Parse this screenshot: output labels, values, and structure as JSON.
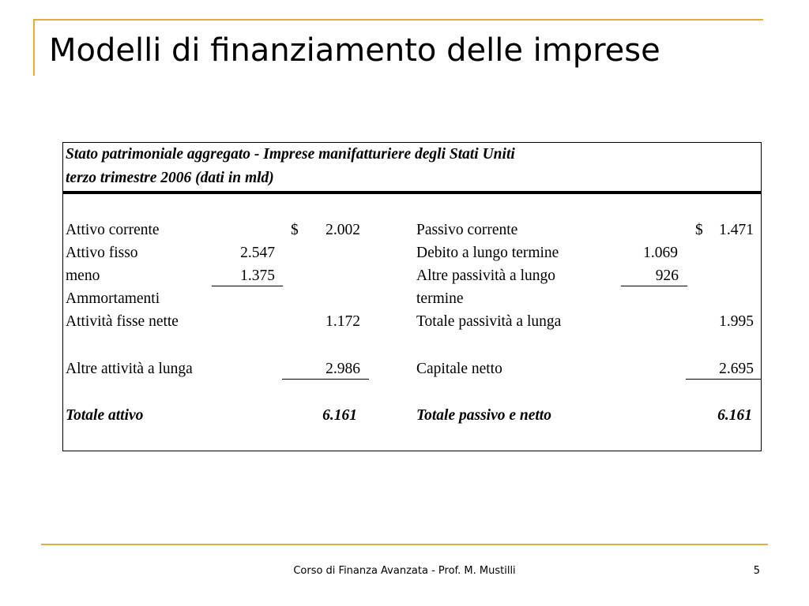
{
  "slide": {
    "title": "Modelli di finanziamento delle imprese",
    "footer": "Corso di Finanza Avanzata - Prof. M. Mustilli",
    "page_number": "5",
    "accent_color": "#e2b03a"
  },
  "table": {
    "header_line1": "Stato patrimoniale aggregato - Imprese manifatturiere degli Stati Uniti",
    "header_line2": "terzo trimestre 2006 (dati in mld)",
    "assets": {
      "current_label": "Attivo corrente",
      "current_currency": "$",
      "current_value": "2.002",
      "fixed_label": "Attivo fisso",
      "fixed_value": "2.547",
      "depr_label_line1": "meno",
      "depr_value": "1.375",
      "depr_label_line2": "Ammortamenti",
      "net_fixed_label": "Attività fisse nette",
      "net_fixed_value": "1.172",
      "other_label": "Altre attività a lunga",
      "other_value": "2.986",
      "total_label": "Totale attivo",
      "total_value": "6.161"
    },
    "liabilities": {
      "current_label": "Passivo corrente",
      "current_currency": "$",
      "current_value": "1.471",
      "lt_debt_label": "Debito a lungo termine",
      "lt_debt_value": "1.069",
      "other_lt_label_line1": "Altre passività a lungo",
      "other_lt_value": "926",
      "other_lt_label_line2": "termine",
      "total_lt_label": "Totale passività a lunga",
      "total_lt_value": "1.995",
      "equity_label": "Capitale netto",
      "equity_value": "2.695",
      "total_label": "Totale passivo e netto",
      "total_value": "6.161"
    }
  }
}
